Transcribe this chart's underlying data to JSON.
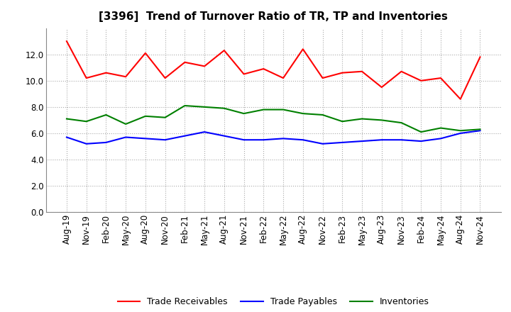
{
  "title": "[3396]  Trend of Turnover Ratio of TR, TP and Inventories",
  "x_labels": [
    "Aug-19",
    "Nov-19",
    "Feb-20",
    "May-20",
    "Aug-20",
    "Nov-20",
    "Feb-21",
    "May-21",
    "Aug-21",
    "Nov-21",
    "Feb-22",
    "May-22",
    "Aug-22",
    "Nov-22",
    "Feb-23",
    "May-23",
    "Aug-23",
    "Nov-23",
    "Feb-24",
    "May-24",
    "Aug-24",
    "Nov-24"
  ],
  "trade_receivables": [
    13.0,
    10.2,
    10.6,
    10.3,
    12.1,
    10.2,
    11.4,
    11.1,
    12.3,
    10.5,
    10.9,
    10.2,
    12.4,
    10.2,
    10.6,
    10.7,
    9.5,
    10.7,
    10.0,
    10.2,
    8.6,
    11.8
  ],
  "trade_payables": [
    5.7,
    5.2,
    5.3,
    5.7,
    5.6,
    5.5,
    5.8,
    6.1,
    5.8,
    5.5,
    5.5,
    5.6,
    5.5,
    5.2,
    5.3,
    5.4,
    5.5,
    5.5,
    5.4,
    5.6,
    6.0,
    6.2
  ],
  "inventories": [
    7.1,
    6.9,
    7.4,
    6.7,
    7.3,
    7.2,
    8.1,
    8.0,
    7.9,
    7.5,
    7.8,
    7.8,
    7.5,
    7.4,
    6.9,
    7.1,
    7.0,
    6.8,
    6.1,
    6.4,
    6.2,
    6.3
  ],
  "tr_color": "#FF0000",
  "tp_color": "#0000FF",
  "inv_color": "#008000",
  "ylim": [
    0.0,
    14.0
  ],
  "yticks": [
    0.0,
    2.0,
    4.0,
    6.0,
    8.0,
    10.0,
    12.0
  ],
  "legend_labels": [
    "Trade Receivables",
    "Trade Payables",
    "Inventories"
  ],
  "bg_color": "#FFFFFF",
  "grid_color": "#AAAAAA",
  "title_fontsize": 11,
  "tick_fontsize": 8.5,
  "legend_fontsize": 9
}
